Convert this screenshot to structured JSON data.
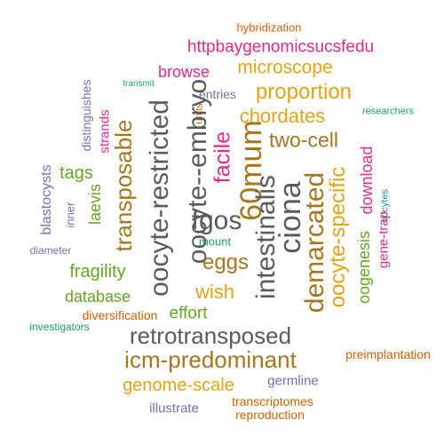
{
  "colors": {
    "gray": "#5b5b5b",
    "gold": "#e6a313",
    "brown": "#a6761d",
    "magenta": "#e7298a",
    "orange": "#d95f02",
    "green": "#66a61e",
    "teal": "#1b9e77",
    "purple": "#7570b3"
  },
  "words": [
    {
      "text": "hybridization",
      "color": "#d95f02"
    },
    {
      "text": "httpbaygenomicsucsfedu",
      "color": "#e7298a"
    },
    {
      "text": "microscope",
      "color": "#e6a313"
    },
    {
      "text": "browse",
      "color": "#e7298a"
    },
    {
      "text": "transmit",
      "color": "#1b9e77"
    },
    {
      "text": "proportion",
      "color": "#e6a313"
    },
    {
      "text": "entries",
      "color": "#7570b3"
    },
    {
      "text": "researchers",
      "color": "#1b9e77"
    },
    {
      "text": "chordates",
      "color": "#e6a313"
    },
    {
      "text": "two-cell",
      "color": "#a6761d"
    },
    {
      "text": "distinguishes",
      "color": "#7570b3"
    },
    {
      "text": "units",
      "color": "#d95f02"
    },
    {
      "text": "strands",
      "color": "#e7298a"
    },
    {
      "text": "transposable",
      "color": "#a6761d"
    },
    {
      "text": "oocyte-restricted",
      "color": "#5b5b5b"
    },
    {
      "text": "oocyte--embryo",
      "color": "#5b5b5b"
    },
    {
      "text": "facile",
      "color": "#e7298a"
    },
    {
      "text": "60mum",
      "color": "#a6761d"
    },
    {
      "text": "ciona",
      "color": "#5b5b5b"
    },
    {
      "text": "tags",
      "color": "#66a61e"
    },
    {
      "text": "blastocysts",
      "color": "#7570b3"
    },
    {
      "text": "inner",
      "color": "#7570b3"
    },
    {
      "text": "laevis",
      "color": "#66a61e"
    },
    {
      "text": "fgos",
      "color": "#5b5b5b"
    },
    {
      "text": "demarcated",
      "color": "#a6761d"
    },
    {
      "text": "oocyte-specific",
      "color": "#e6a313"
    },
    {
      "text": "download",
      "color": "#e7298a"
    },
    {
      "text": "oocytes",
      "color": "#1b9e77"
    },
    {
      "text": "gene-trap",
      "color": "#e7298a"
    },
    {
      "text": "oogenesis",
      "color": "#66a61e"
    },
    {
      "text": "mount",
      "color": "#1b9e77"
    },
    {
      "text": "intestinalis",
      "color": "#5b5b5b"
    },
    {
      "text": "diameter",
      "color": "#7570b3"
    },
    {
      "text": "eggs",
      "color": "#a6761d"
    },
    {
      "text": "fragility",
      "color": "#66a61e"
    },
    {
      "text": "database",
      "color": "#66a61e"
    },
    {
      "text": "wish",
      "color": "#e6a313"
    },
    {
      "text": "effort",
      "color": "#66a61e"
    },
    {
      "text": "diversification",
      "color": "#d95f02"
    },
    {
      "text": "investigators",
      "color": "#1b9e77"
    },
    {
      "text": "retrotransposed",
      "color": "#5b5b5b"
    },
    {
      "text": "preimplantation",
      "color": "#d95f02"
    },
    {
      "text": "icm-predominant",
      "color": "#a6761d"
    },
    {
      "text": "genome-scale",
      "color": "#e6a313"
    },
    {
      "text": "germline",
      "color": "#7570b3"
    },
    {
      "text": "illustrate",
      "color": "#7570b3"
    },
    {
      "text": "transcriptomes",
      "color": "#d95f02"
    },
    {
      "text": "reproduction",
      "color": "#d95f02"
    }
  ]
}
